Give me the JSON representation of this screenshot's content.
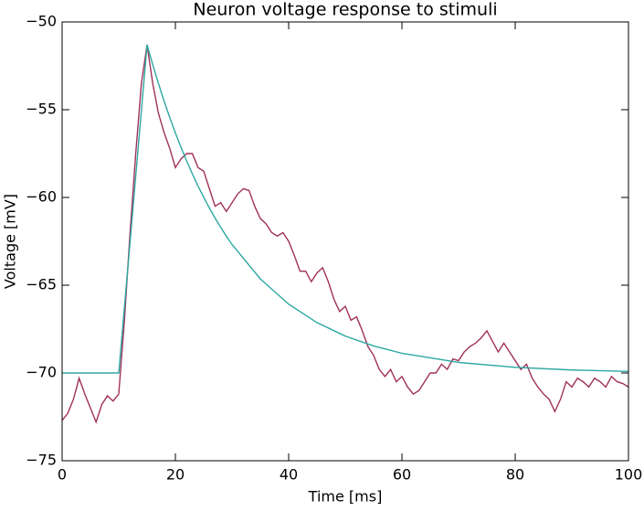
{
  "chart_data": {
    "type": "line",
    "title": "Neuron voltage response to stimuli",
    "x_label": "Time [ms]",
    "y_label": "Voltage [mV]",
    "xlim": [
      0,
      100
    ],
    "ylim": [
      -75,
      -50
    ],
    "xticks": [
      0,
      20,
      40,
      60,
      80,
      100
    ],
    "yticks": [
      {
        "value": -75,
        "label": "−75"
      },
      {
        "value": -70,
        "label": "−70"
      },
      {
        "value": -65,
        "label": "−65"
      },
      {
        "value": -60,
        "label": "−60"
      },
      {
        "value": -55,
        "label": "−55"
      },
      {
        "value": -50,
        "label": "−50"
      }
    ],
    "series": [
      {
        "color": "#a0305a",
        "x": [
          0,
          1,
          2,
          3,
          4,
          5,
          6,
          7,
          8,
          9,
          10,
          11,
          12,
          13,
          14,
          15,
          16,
          17,
          18,
          19,
          20,
          21,
          22,
          23,
          24,
          25,
          26,
          27,
          28,
          29,
          30,
          31,
          32,
          33,
          34,
          35,
          36,
          37,
          38,
          39,
          40,
          41,
          42,
          43,
          44,
          45,
          46,
          47,
          48,
          49,
          50,
          51,
          52,
          53,
          54,
          55,
          56,
          57,
          58,
          59,
          60,
          61,
          62,
          63,
          64,
          65,
          66,
          67,
          68,
          69,
          70,
          71,
          72,
          73,
          74,
          75,
          76,
          77,
          78,
          79,
          80,
          81,
          82,
          83,
          84,
          85,
          86,
          87,
          88,
          89,
          90,
          91,
          92,
          93,
          94,
          95,
          96,
          97,
          98,
          99,
          100
        ],
        "values": [
          -72.7,
          -72.3,
          -71.5,
          -70.3,
          -71.2,
          -72.0,
          -72.8,
          -71.8,
          -71.3,
          -71.6,
          -71.2,
          -67,
          -62,
          -57.5,
          -53.5,
          -51.3,
          -53.5,
          -55.2,
          -56.3,
          -57.2,
          -58.3,
          -57.8,
          -57.5,
          -57.5,
          -58.3,
          -58.5,
          -59.5,
          -60.5,
          -60.3,
          -60.8,
          -60.3,
          -59.8,
          -59.5,
          -59.6,
          -60.5,
          -61.2,
          -61.5,
          -62.0,
          -62.2,
          -62.0,
          -62.5,
          -63.3,
          -64.2,
          -64.2,
          -64.8,
          -64.3,
          -64.0,
          -64.8,
          -65.8,
          -66.5,
          -66.2,
          -67.0,
          -66.8,
          -67.6,
          -68.5,
          -69.0,
          -69.8,
          -70.2,
          -69.8,
          -70.5,
          -70.2,
          -70.8,
          -71.2,
          -71.0,
          -70.5,
          -70.0,
          -70.0,
          -69.5,
          -69.8,
          -69.2,
          -69.3,
          -68.8,
          -68.5,
          -68.3,
          -68.0,
          -67.6,
          -68.2,
          -68.8,
          -68.3,
          -68.8,
          -69.3,
          -69.8,
          -69.5,
          -70.3,
          -70.8,
          -71.2,
          -71.5,
          -72.2,
          -71.5,
          -70.5,
          -70.8,
          -70.3,
          -70.5,
          -70.8,
          -70.3,
          -70.5,
          -70.8,
          -70.2,
          -70.5,
          -70.6,
          -70.8
        ]
      },
      {
        "color": "#2ca8a0",
        "x": [
          0,
          10,
          11,
          12,
          13,
          14,
          15,
          16,
          17,
          18,
          19,
          20,
          21,
          22,
          23,
          24,
          25,
          26,
          27,
          28,
          29,
          30,
          35,
          40,
          45,
          50,
          55,
          60,
          70,
          80,
          90,
          100
        ],
        "values": [
          -70,
          -70,
          -66.26,
          -62.52,
          -58.78,
          -55.04,
          -51.3,
          -52.43,
          -53.5,
          -54.5,
          -55.44,
          -56.32,
          -57.15,
          -57.93,
          -58.66,
          -59.35,
          -59.99,
          -60.6,
          -61.17,
          -61.7,
          -62.21,
          -62.68,
          -64.64,
          -66.08,
          -67.13,
          -67.9,
          -68.46,
          -68.88,
          -69.4,
          -69.68,
          -69.83,
          -69.91
        ]
      }
    ]
  }
}
